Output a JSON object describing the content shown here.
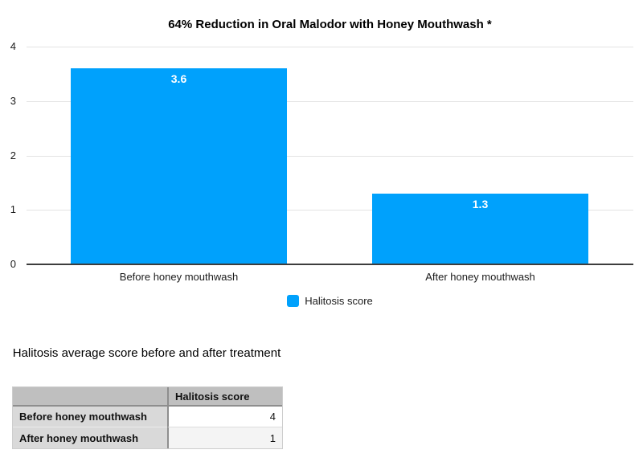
{
  "chart_data": {
    "type": "bar",
    "title": "64% Reduction in Oral Malodor with Honey Mouthwash *",
    "categories": [
      "Before honey mouthwash",
      "After honey mouthwash"
    ],
    "series": [
      {
        "name": "Halitosis score",
        "values": [
          3.6,
          1.3
        ]
      }
    ],
    "ylim": [
      0,
      4
    ],
    "yticks": [
      0,
      1,
      2,
      3,
      4
    ],
    "grid": true,
    "legend_position": "bottom",
    "bar_color": "#00a1fc",
    "value_label_color": "#ffffff"
  },
  "legend": {
    "label": "Halitosis score",
    "swatch_color": "#00a1fc"
  },
  "table": {
    "title": "Halitosis average score before and after treatment",
    "columns": [
      "",
      "Halitosis score"
    ],
    "rows": [
      {
        "label": "Before honey mouthwash",
        "value": "4"
      },
      {
        "label": "After honey mouthwash",
        "value": "1"
      }
    ]
  }
}
